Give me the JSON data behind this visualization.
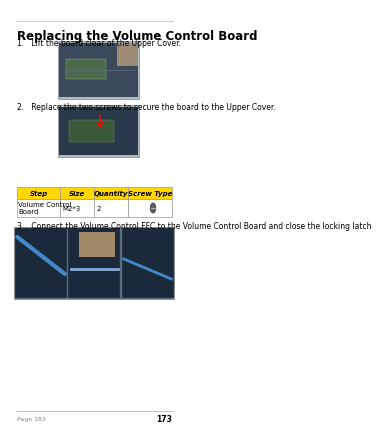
{
  "title": "Replacing the Volume Control Board",
  "step1_text": "1.   Lift the board clear of the Upper Cover.",
  "step2_text": "2.   Replace the two screws to secure the board to the Upper Cover.",
  "step3_text": "3.   Connect the Volume Control FFC to the Volume Control Board and close the locking latch",
  "table_headers": [
    "Step",
    "Size",
    "Quantity",
    "Screw Type"
  ],
  "table_row": [
    "Volume Control\nBoard",
    "M2*3",
    "2",
    ""
  ],
  "header_bg": "#FFD700",
  "header_text": "#000000",
  "table_border": "#999999",
  "page_bg": "#FFFFFF",
  "line_color": "#CCCCCC",
  "footer_line_color": "#AAAAAA",
  "page_number": "173",
  "footer_left": "Page 183",
  "title_fontsize": 8.5,
  "body_fontsize": 5.5,
  "table_fontsize": 5.0
}
